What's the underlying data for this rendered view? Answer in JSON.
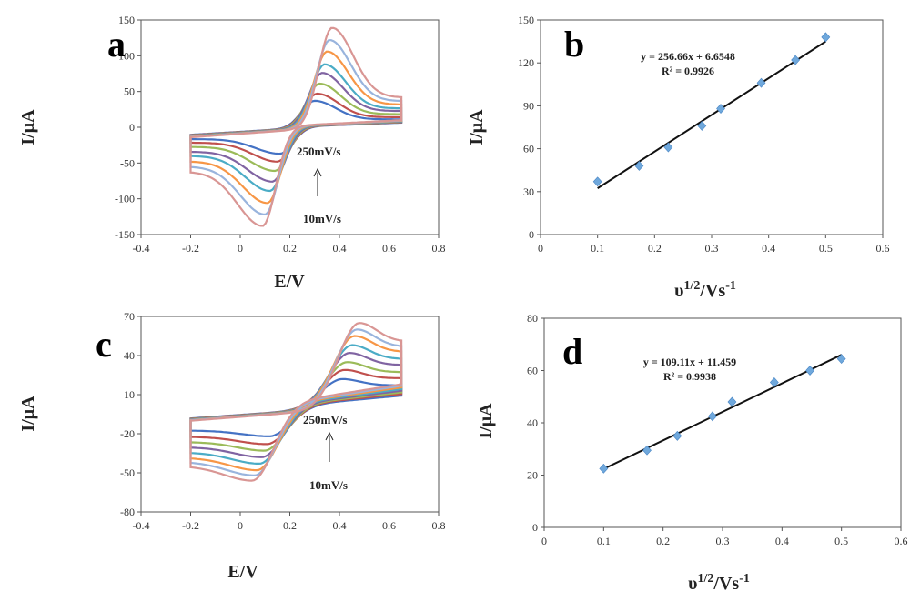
{
  "chart_data": [
    {
      "panel": "a",
      "type": "line",
      "xlabel": "E/V",
      "ylabel": "I/μA",
      "xlim": [
        -0.4,
        0.8
      ],
      "ylim": [
        -150,
        150
      ],
      "xticks": [
        -0.4,
        -0.2,
        0,
        0.2,
        0.4,
        0.6,
        0.8
      ],
      "yticks": [
        -150,
        -100,
        -50,
        0,
        50,
        100,
        150
      ],
      "xtick_labels": [
        "-0.4",
        "-0.2",
        "0",
        "0.2",
        "0.4",
        "0.6",
        "0.8"
      ],
      "ytick_labels": [
        "-150",
        "-100",
        "-50",
        "0",
        "50",
        "100",
        "150"
      ],
      "potential_window": [
        -0.2,
        0.65
      ],
      "series_colors": [
        "#4472c4",
        "#c0504d",
        "#9bbb59",
        "#8064a2",
        "#4bacc6",
        "#f79646",
        "#99b4dd",
        "#d99694"
      ],
      "series_peaks": [
        {
          "anodic_E": 0.3,
          "anodic_I": 37,
          "cathodic_E": 0.16,
          "cathodic_I": -37
        },
        {
          "anodic_E": 0.31,
          "anodic_I": 47,
          "cathodic_E": 0.15,
          "cathodic_I": -48
        },
        {
          "anodic_E": 0.32,
          "anodic_I": 61,
          "cathodic_E": 0.14,
          "cathodic_I": -61
        },
        {
          "anodic_E": 0.33,
          "anodic_I": 76,
          "cathodic_E": 0.13,
          "cathodic_I": -76
        },
        {
          "anodic_E": 0.34,
          "anodic_I": 88,
          "cathodic_E": 0.12,
          "cathodic_I": -89
        },
        {
          "anodic_E": 0.35,
          "anodic_I": 106,
          "cathodic_E": 0.11,
          "cathodic_I": -106
        },
        {
          "anodic_E": 0.36,
          "anodic_I": 122,
          "cathodic_E": 0.1,
          "cathodic_I": -122
        },
        {
          "anodic_E": 0.37,
          "anodic_I": 139,
          "cathodic_E": 0.09,
          "cathodic_I": -138
        }
      ],
      "annotation_top": "250mV/s",
      "annotation_bottom": "10mV/s"
    },
    {
      "panel": "b",
      "type": "scatter",
      "xlabel_main": "υ",
      "xlabel_sup": "1/2",
      "xlabel_tail": "/Vs",
      "xlabel_sup2": "-1",
      "ylabel": "I/μA",
      "xlim": [
        0,
        0.6
      ],
      "ylim": [
        0,
        150
      ],
      "xticks": [
        0,
        0.1,
        0.2,
        0.3,
        0.4,
        0.5,
        0.6
      ],
      "yticks": [
        0,
        30,
        60,
        90,
        120,
        150
      ],
      "xtick_labels": [
        "0",
        "0.1",
        "0.2",
        "0.3",
        "0.4",
        "0.5",
        "0.6"
      ],
      "ytick_labels": [
        "0",
        "30",
        "60",
        "90",
        "120",
        "150"
      ],
      "x": [
        0.1,
        0.173,
        0.224,
        0.283,
        0.316,
        0.387,
        0.447,
        0.5
      ],
      "y": [
        37,
        48,
        61,
        76,
        88,
        106,
        122,
        138
      ],
      "fit": {
        "slope": 256.66,
        "intercept": 6.6548,
        "x_range": [
          0.1,
          0.5
        ]
      },
      "equation": "y = 256.66x + 6.6548",
      "r2": "R² = 0.9926",
      "marker_color": "#6fa8dc"
    },
    {
      "panel": "c",
      "type": "line",
      "xlabel": "E/V",
      "ylabel": "I/μA",
      "xlim": [
        -0.4,
        0.8
      ],
      "ylim": [
        -80,
        70
      ],
      "xticks": [
        -0.4,
        -0.2,
        0,
        0.2,
        0.4,
        0.6,
        0.8
      ],
      "yticks": [
        -80,
        -50,
        -20,
        10,
        40,
        70
      ],
      "xtick_labels": [
        "-0.4",
        "-0.2",
        "0",
        "0.2",
        "0.4",
        "0.6",
        "0.8"
      ],
      "ytick_labels": [
        "-80",
        "-50",
        "-20",
        "10",
        "40",
        "70"
      ],
      "potential_window": [
        -0.2,
        0.65
      ],
      "series_colors": [
        "#4472c4",
        "#c0504d",
        "#9bbb59",
        "#8064a2",
        "#4bacc6",
        "#f79646",
        "#99b4dd",
        "#d99694"
      ],
      "series_peaks": [
        {
          "anodic_E": 0.41,
          "anodic_I": 22,
          "cathodic_E": 0.12,
          "cathodic_I": -22
        },
        {
          "anodic_E": 0.42,
          "anodic_I": 29,
          "cathodic_E": 0.11,
          "cathodic_I": -28
        },
        {
          "anodic_E": 0.43,
          "anodic_I": 35,
          "cathodic_E": 0.1,
          "cathodic_I": -33
        },
        {
          "anodic_E": 0.44,
          "anodic_I": 42,
          "cathodic_E": 0.09,
          "cathodic_I": -38
        },
        {
          "anodic_E": 0.45,
          "anodic_I": 48,
          "cathodic_E": 0.08,
          "cathodic_I": -43
        },
        {
          "anodic_E": 0.46,
          "anodic_I": 55,
          "cathodic_E": 0.07,
          "cathodic_I": -48
        },
        {
          "anodic_E": 0.47,
          "anodic_I": 60,
          "cathodic_E": 0.06,
          "cathodic_I": -52
        },
        {
          "anodic_E": 0.48,
          "anodic_I": 65,
          "cathodic_E": 0.05,
          "cathodic_I": -56
        }
      ],
      "annotation_top": "250mV/s",
      "annotation_bottom": "10mV/s"
    },
    {
      "panel": "d",
      "type": "scatter",
      "xlabel_main": "υ",
      "xlabel_sup": "1/2",
      "xlabel_tail": "/Vs",
      "xlabel_sup2": "-1",
      "ylabel": "I/μA",
      "xlim": [
        0,
        0.6
      ],
      "ylim": [
        0,
        80
      ],
      "xticks": [
        0,
        0.1,
        0.2,
        0.3,
        0.4,
        0.5,
        0.6
      ],
      "yticks": [
        0,
        20,
        40,
        60,
        80
      ],
      "xtick_labels": [
        "0",
        "0.1",
        "0.2",
        "0.3",
        "0.4",
        "0.5",
        "0.6"
      ],
      "ytick_labels": [
        "0",
        "20",
        "40",
        "60",
        "80"
      ],
      "x": [
        0.1,
        0.173,
        0.224,
        0.283,
        0.316,
        0.387,
        0.447,
        0.5
      ],
      "y": [
        22.5,
        29.5,
        35,
        42.5,
        48,
        55.5,
        60,
        64.5
      ],
      "fit": {
        "slope": 109.11,
        "intercept": 11.459,
        "x_range": [
          0.1,
          0.5
        ]
      },
      "equation": "y = 109.11x + 11.459",
      "r2": "R² = 0.9938",
      "marker_color": "#6fa8dc"
    }
  ]
}
